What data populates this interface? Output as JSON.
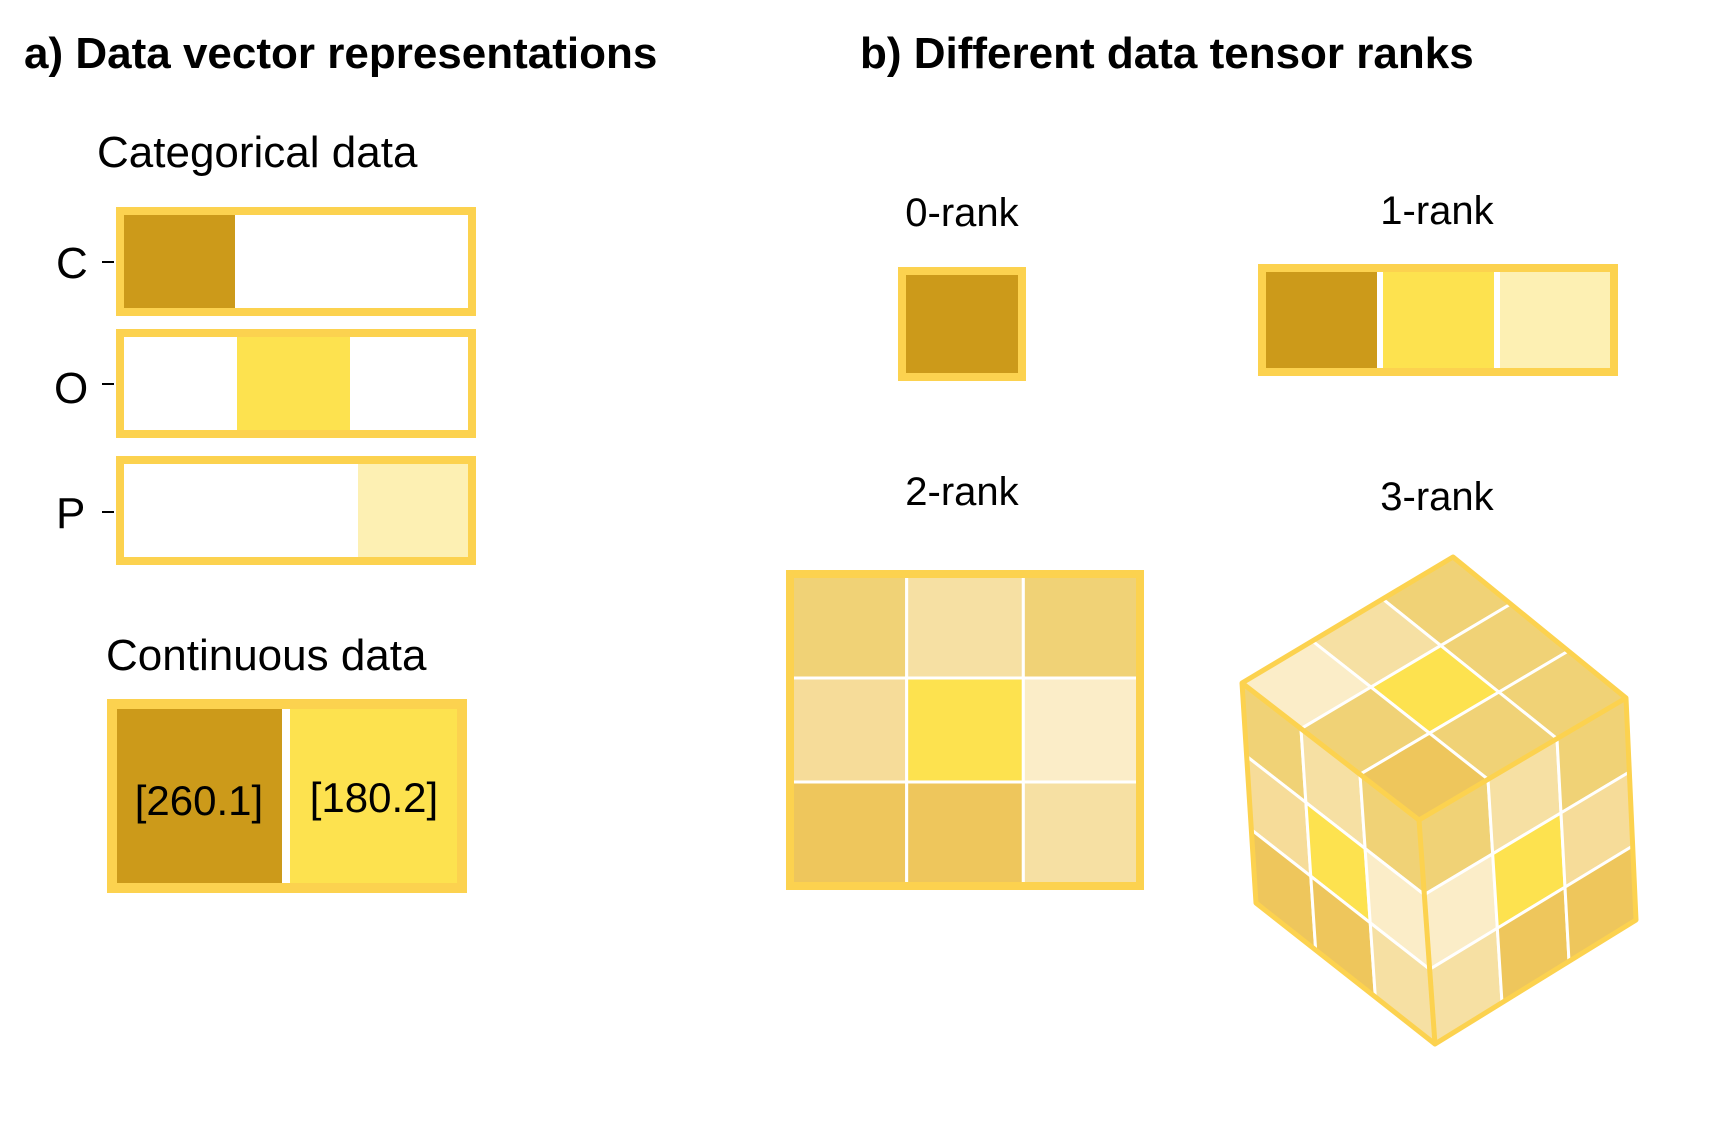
{
  "panel_a": {
    "title": "a) Data vector representations",
    "categorical": {
      "heading": "Categorical data",
      "rows": [
        {
          "label": "C",
          "hot_index": 0,
          "color": "#cc9a1a"
        },
        {
          "label": "O",
          "hot_index": 1,
          "color": "#fde24f"
        },
        {
          "label": "P",
          "hot_index": 2,
          "color": "#fdf0b3"
        }
      ]
    },
    "continuous": {
      "heading": "Continuous data",
      "values": [
        {
          "text": "[260.1]",
          "color": "#cc9a1a"
        },
        {
          "text": "[180.2]",
          "color": "#fde24f"
        }
      ]
    }
  },
  "panel_b": {
    "title": "b) Different data tensor ranks",
    "rank0": {
      "label": "0-rank",
      "color": "#cc9a1a"
    },
    "rank1": {
      "label": "1-rank",
      "colors": [
        "#cc9a1a",
        "#fde24f",
        "#fdf0b3"
      ]
    },
    "rank2": {
      "label": "2-rank",
      "grid": [
        [
          "#f0d276",
          "#f6e0a3",
          "#f0d276"
        ],
        [
          "#f6dc99",
          "#fde24f",
          "#fbedc8"
        ],
        [
          "#eec65c",
          "#eec65c",
          "#f6e0a3"
        ]
      ]
    },
    "rank3": {
      "label": "3-rank",
      "top": [
        [
          "#f0d276",
          "#f0d276",
          "#f0d276"
        ],
        [
          "#f6e0a3",
          "#fde24f",
          "#f0d276"
        ],
        [
          "#fbedc8",
          "#f0d276",
          "#eec65c"
        ]
      ],
      "left": [
        [
          "#f0d276",
          "#f6e0a3",
          "#f0d276"
        ],
        [
          "#f6dc99",
          "#fde24f",
          "#fbedc8"
        ],
        [
          "#eec65c",
          "#eec65c",
          "#f6e0a3"
        ]
      ],
      "right": [
        [
          "#f0d276",
          "#f6e0a3",
          "#f0d276"
        ],
        [
          "#fbedc8",
          "#fde24f",
          "#f6dc99"
        ],
        [
          "#f6e0a3",
          "#eec65c",
          "#eec65c"
        ]
      ]
    }
  },
  "colors": {
    "border": "#fcd24f",
    "grid_line": "#ffffff"
  }
}
